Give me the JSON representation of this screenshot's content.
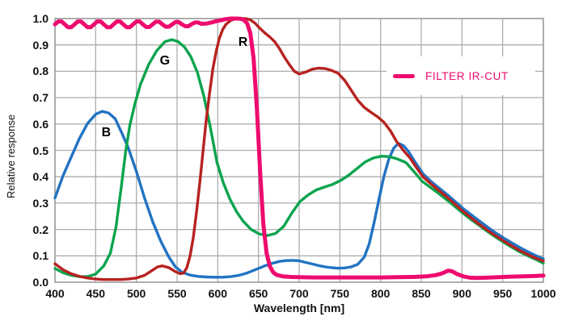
{
  "chart_data": {
    "type": "line",
    "title": "",
    "xlabel": "Wavelength [nm]",
    "ylabel": "Relative response",
    "xlim": [
      400,
      1000
    ],
    "ylim": [
      0,
      1.0
    ],
    "grid": true,
    "x_ticks": [
      400,
      450,
      500,
      550,
      600,
      650,
      700,
      750,
      800,
      850,
      900,
      950,
      1000
    ],
    "y_ticks": [
      "1.0",
      "0.9",
      "0.8",
      "0.7",
      "0.6",
      "0.5",
      "0.4",
      "0.3",
      "0.2",
      "0.1",
      "0.0"
    ],
    "colors": {
      "blue": "#2273c2",
      "green": "#0ba44d",
      "red": "#b7221f",
      "pink": "#ee0b6e",
      "grid": "#adadad",
      "frame": "#9a9a9a"
    },
    "legend": {
      "label": "FILTER IR-CUT",
      "color": "#ee0b6e",
      "position": "right"
    },
    "annotations": [
      {
        "text": "B",
        "x": 463,
        "y": 0.565
      },
      {
        "text": "G",
        "x": 535,
        "y": 0.838
      },
      {
        "text": "R",
        "x": 631,
        "y": 0.908
      }
    ],
    "series": [
      {
        "name": "B",
        "color": "#2273c2",
        "width": 3.4,
        "points": [
          [
            400,
            0.32
          ],
          [
            410,
            0.405
          ],
          [
            420,
            0.475
          ],
          [
            430,
            0.545
          ],
          [
            440,
            0.602
          ],
          [
            450,
            0.637
          ],
          [
            458,
            0.648
          ],
          [
            466,
            0.642
          ],
          [
            474,
            0.62
          ],
          [
            482,
            0.567
          ],
          [
            490,
            0.51
          ],
          [
            500,
            0.42
          ],
          [
            510,
            0.32
          ],
          [
            520,
            0.23
          ],
          [
            530,
            0.155
          ],
          [
            540,
            0.095
          ],
          [
            548,
            0.058
          ],
          [
            556,
            0.038
          ],
          [
            566,
            0.027
          ],
          [
            576,
            0.022
          ],
          [
            586,
            0.02
          ],
          [
            596,
            0.019
          ],
          [
            606,
            0.019
          ],
          [
            616,
            0.021
          ],
          [
            626,
            0.026
          ],
          [
            636,
            0.035
          ],
          [
            646,
            0.047
          ],
          [
            656,
            0.06
          ],
          [
            666,
            0.071
          ],
          [
            676,
            0.079
          ],
          [
            684,
            0.082
          ],
          [
            692,
            0.083
          ],
          [
            700,
            0.081
          ],
          [
            708,
            0.075
          ],
          [
            716,
            0.069
          ],
          [
            724,
            0.063
          ],
          [
            732,
            0.058
          ],
          [
            740,
            0.055
          ],
          [
            748,
            0.053
          ],
          [
            756,
            0.054
          ],
          [
            764,
            0.058
          ],
          [
            772,
            0.068
          ],
          [
            780,
            0.095
          ],
          [
            786,
            0.145
          ],
          [
            792,
            0.225
          ],
          [
            798,
            0.315
          ],
          [
            804,
            0.4
          ],
          [
            810,
            0.465
          ],
          [
            816,
            0.508
          ],
          [
            822,
            0.527
          ],
          [
            828,
            0.518
          ],
          [
            834,
            0.497
          ],
          [
            842,
            0.458
          ],
          [
            852,
            0.412
          ],
          [
            862,
            0.382
          ],
          [
            872,
            0.357
          ],
          [
            882,
            0.332
          ],
          [
            892,
            0.305
          ],
          [
            902,
            0.278
          ],
          [
            912,
            0.254
          ],
          [
            922,
            0.231
          ],
          [
            932,
            0.208
          ],
          [
            942,
            0.186
          ],
          [
            952,
            0.166
          ],
          [
            962,
            0.148
          ],
          [
            972,
            0.13
          ],
          [
            982,
            0.114
          ],
          [
            992,
            0.099
          ],
          [
            1000,
            0.088
          ]
        ]
      },
      {
        "name": "G",
        "color": "#0ba44d",
        "width": 3.4,
        "points": [
          [
            400,
            0.052
          ],
          [
            410,
            0.036
          ],
          [
            420,
            0.026
          ],
          [
            430,
            0.021
          ],
          [
            440,
            0.021
          ],
          [
            450,
            0.031
          ],
          [
            460,
            0.062
          ],
          [
            468,
            0.11
          ],
          [
            475,
            0.21
          ],
          [
            481,
            0.35
          ],
          [
            487,
            0.5
          ],
          [
            492,
            0.595
          ],
          [
            498,
            0.675
          ],
          [
            505,
            0.75
          ],
          [
            515,
            0.825
          ],
          [
            525,
            0.878
          ],
          [
            535,
            0.912
          ],
          [
            543,
            0.92
          ],
          [
            551,
            0.913
          ],
          [
            559,
            0.892
          ],
          [
            567,
            0.855
          ],
          [
            575,
            0.795
          ],
          [
            583,
            0.705
          ],
          [
            591,
            0.585
          ],
          [
            599,
            0.455
          ],
          [
            607,
            0.375
          ],
          [
            615,
            0.315
          ],
          [
            623,
            0.268
          ],
          [
            631,
            0.232
          ],
          [
            641,
            0.2
          ],
          [
            651,
            0.183
          ],
          [
            661,
            0.177
          ],
          [
            671,
            0.185
          ],
          [
            681,
            0.212
          ],
          [
            691,
            0.262
          ],
          [
            701,
            0.306
          ],
          [
            711,
            0.331
          ],
          [
            721,
            0.35
          ],
          [
            731,
            0.361
          ],
          [
            741,
            0.371
          ],
          [
            751,
            0.386
          ],
          [
            761,
            0.406
          ],
          [
            771,
            0.431
          ],
          [
            781,
            0.456
          ],
          [
            791,
            0.471
          ],
          [
            801,
            0.478
          ],
          [
            811,
            0.476
          ],
          [
            821,
            0.467
          ],
          [
            831,
            0.454
          ],
          [
            841,
            0.42
          ],
          [
            851,
            0.383
          ],
          [
            861,
            0.36
          ],
          [
            871,
            0.338
          ],
          [
            881,
            0.313
          ],
          [
            891,
            0.288
          ],
          [
            901,
            0.262
          ],
          [
            911,
            0.238
          ],
          [
            921,
            0.216
          ],
          [
            931,
            0.193
          ],
          [
            941,
            0.172
          ],
          [
            951,
            0.152
          ],
          [
            961,
            0.133
          ],
          [
            971,
            0.115
          ],
          [
            981,
            0.1
          ],
          [
            991,
            0.086
          ],
          [
            1000,
            0.072
          ]
        ]
      },
      {
        "name": "R",
        "color": "#b7221f",
        "width": 3.4,
        "points": [
          [
            400,
            0.07
          ],
          [
            410,
            0.047
          ],
          [
            420,
            0.032
          ],
          [
            430,
            0.022
          ],
          [
            440,
            0.016
          ],
          [
            450,
            0.012
          ],
          [
            460,
            0.01
          ],
          [
            470,
            0.01
          ],
          [
            480,
            0.01
          ],
          [
            490,
            0.012
          ],
          [
            500,
            0.016
          ],
          [
            510,
            0.026
          ],
          [
            518,
            0.042
          ],
          [
            526,
            0.058
          ],
          [
            532,
            0.062
          ],
          [
            540,
            0.055
          ],
          [
            548,
            0.04
          ],
          [
            554,
            0.032
          ],
          [
            558,
            0.035
          ],
          [
            562,
            0.055
          ],
          [
            566,
            0.1
          ],
          [
            570,
            0.17
          ],
          [
            574,
            0.27
          ],
          [
            578,
            0.38
          ],
          [
            582,
            0.5
          ],
          [
            586,
            0.62
          ],
          [
            590,
            0.72
          ],
          [
            594,
            0.81
          ],
          [
            598,
            0.875
          ],
          [
            602,
            0.925
          ],
          [
            606,
            0.958
          ],
          [
            610,
            0.978
          ],
          [
            616,
            0.993
          ],
          [
            622,
            0.999
          ],
          [
            628,
            1.0
          ],
          [
            634,
            1.0
          ],
          [
            640,
            0.995
          ],
          [
            646,
            0.982
          ],
          [
            652,
            0.962
          ],
          [
            658,
            0.945
          ],
          [
            664,
            0.93
          ],
          [
            670,
            0.912
          ],
          [
            676,
            0.885
          ],
          [
            682,
            0.853
          ],
          [
            688,
            0.825
          ],
          [
            694,
            0.8
          ],
          [
            700,
            0.79
          ],
          [
            708,
            0.797
          ],
          [
            716,
            0.808
          ],
          [
            724,
            0.812
          ],
          [
            732,
            0.81
          ],
          [
            740,
            0.803
          ],
          [
            748,
            0.792
          ],
          [
            756,
            0.765
          ],
          [
            764,
            0.728
          ],
          [
            772,
            0.69
          ],
          [
            780,
            0.663
          ],
          [
            788,
            0.645
          ],
          [
            796,
            0.628
          ],
          [
            804,
            0.607
          ],
          [
            812,
            0.575
          ],
          [
            820,
            0.532
          ],
          [
            828,
            0.5
          ],
          [
            836,
            0.472
          ],
          [
            844,
            0.435
          ],
          [
            852,
            0.4
          ],
          [
            860,
            0.378
          ],
          [
            870,
            0.352
          ],
          [
            880,
            0.327
          ],
          [
            890,
            0.3
          ],
          [
            900,
            0.272
          ],
          [
            910,
            0.247
          ],
          [
            920,
            0.223
          ],
          [
            930,
            0.2
          ],
          [
            940,
            0.179
          ],
          [
            950,
            0.159
          ],
          [
            960,
            0.14
          ],
          [
            970,
            0.122
          ],
          [
            980,
            0.106
          ],
          [
            990,
            0.092
          ],
          [
            1000,
            0.08
          ]
        ]
      },
      {
        "name": "FILTER IR-CUT",
        "color": "#ee0b6e",
        "width": 5,
        "points": [
          [
            400,
            0.978
          ],
          [
            404,
            0.989
          ],
          [
            408,
            0.989
          ],
          [
            412,
            0.978
          ],
          [
            416,
            0.967
          ],
          [
            420,
            0.967
          ],
          [
            424,
            0.978
          ],
          [
            428,
            0.989
          ],
          [
            432,
            0.989
          ],
          [
            436,
            0.978
          ],
          [
            440,
            0.967
          ],
          [
            444,
            0.967
          ],
          [
            448,
            0.978
          ],
          [
            452,
            0.989
          ],
          [
            456,
            0.989
          ],
          [
            460,
            0.978
          ],
          [
            464,
            0.967
          ],
          [
            468,
            0.967
          ],
          [
            472,
            0.978
          ],
          [
            476,
            0.989
          ],
          [
            480,
            0.989
          ],
          [
            484,
            0.978
          ],
          [
            488,
            0.967
          ],
          [
            492,
            0.967
          ],
          [
            496,
            0.978
          ],
          [
            500,
            0.989
          ],
          [
            504,
            0.989
          ],
          [
            508,
            0.978
          ],
          [
            512,
            0.968
          ],
          [
            516,
            0.968
          ],
          [
            520,
            0.978
          ],
          [
            524,
            0.988
          ],
          [
            528,
            0.988
          ],
          [
            532,
            0.978
          ],
          [
            536,
            0.969
          ],
          [
            540,
            0.969
          ],
          [
            544,
            0.978
          ],
          [
            548,
            0.987
          ],
          [
            552,
            0.987
          ],
          [
            556,
            0.978
          ],
          [
            560,
            0.971
          ],
          [
            564,
            0.971
          ],
          [
            568,
            0.979
          ],
          [
            572,
            0.985
          ],
          [
            576,
            0.985
          ],
          [
            580,
            0.98
          ],
          [
            586,
            0.981
          ],
          [
            592,
            0.985
          ],
          [
            598,
            0.99
          ],
          [
            604,
            0.994
          ],
          [
            610,
            0.998
          ],
          [
            616,
            1.0
          ],
          [
            622,
            1.0
          ],
          [
            628,
            0.999
          ],
          [
            632,
            0.995
          ],
          [
            636,
            0.982
          ],
          [
            640,
            0.945
          ],
          [
            644,
            0.85
          ],
          [
            648,
            0.66
          ],
          [
            652,
            0.42
          ],
          [
            656,
            0.22
          ],
          [
            660,
            0.11
          ],
          [
            664,
            0.06
          ],
          [
            668,
            0.038
          ],
          [
            672,
            0.028
          ],
          [
            680,
            0.022
          ],
          [
            690,
            0.02
          ],
          [
            700,
            0.019
          ],
          [
            720,
            0.018
          ],
          [
            740,
            0.018
          ],
          [
            760,
            0.018
          ],
          [
            780,
            0.018
          ],
          [
            800,
            0.018
          ],
          [
            820,
            0.019
          ],
          [
            840,
            0.02
          ],
          [
            856,
            0.022
          ],
          [
            868,
            0.027
          ],
          [
            876,
            0.034
          ],
          [
            883,
            0.044
          ],
          [
            888,
            0.041
          ],
          [
            894,
            0.031
          ],
          [
            902,
            0.022
          ],
          [
            910,
            0.017
          ],
          [
            918,
            0.016
          ],
          [
            930,
            0.017
          ],
          [
            945,
            0.019
          ],
          [
            960,
            0.021
          ],
          [
            975,
            0.022
          ],
          [
            990,
            0.024
          ],
          [
            1000,
            0.025
          ]
        ]
      }
    ]
  }
}
